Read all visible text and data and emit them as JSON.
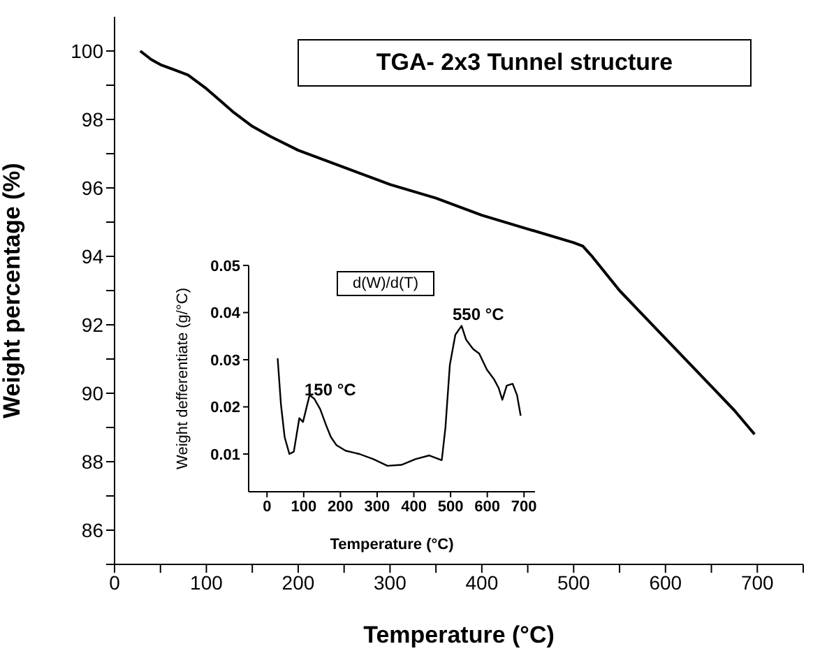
{
  "chart_data": [
    {
      "type": "line",
      "title": "TGA- 2x3 Tunnel structure",
      "xlabel": "Temperature (°C)",
      "ylabel": "Weight percentage (%)",
      "series": [
        {
          "color": "#000000",
          "x": [
            28,
            40,
            50,
            65,
            80,
            100,
            115,
            130,
            150,
            170,
            200,
            250,
            300,
            350,
            400,
            450,
            500,
            510,
            520,
            535,
            550,
            575,
            600,
            625,
            650,
            675,
            697
          ],
          "values": [
            100,
            99.75,
            99.6,
            99.45,
            99.3,
            98.9,
            98.55,
            98.2,
            97.8,
            97.5,
            97.1,
            96.6,
            96.1,
            95.7,
            95.2,
            94.8,
            94.4,
            94.3,
            94.0,
            93.5,
            93.0,
            92.3,
            91.6,
            90.9,
            90.2,
            89.5,
            88.8
          ]
        }
      ],
      "xlim": [
        0,
        750
      ],
      "ylim": [
        85,
        101
      ],
      "xticks": [
        0,
        {
          "value": 50,
          "label": null
        },
        100,
        {
          "value": 150,
          "label": null
        },
        200,
        {
          "value": 250,
          "label": null
        },
        300,
        {
          "value": 350,
          "label": null
        },
        400,
        {
          "value": 450,
          "label": null
        },
        500,
        {
          "value": 550,
          "label": null
        },
        600,
        {
          "value": 650,
          "label": null
        },
        700,
        {
          "value": 750,
          "label": null
        }
      ],
      "yticks": [
        {
          "value": 85,
          "label": null
        },
        86,
        {
          "value": 87,
          "label": null
        },
        88,
        {
          "value": 89,
          "label": null
        },
        90,
        {
          "value": 91,
          "label": null
        },
        92,
        {
          "value": 93,
          "label": null
        },
        94,
        {
          "value": 95,
          "label": null
        },
        96,
        {
          "value": 97,
          "label": null
        },
        98,
        {
          "value": 99,
          "label": null
        },
        100
      ]
    },
    {
      "type": "line",
      "title": "d(W)/d(T)",
      "xlabel": "Temperature (°C)",
      "ylabel": "Weight defferentiate (g/°C)",
      "series": [
        {
          "color": "#000000",
          "x": [
            29,
            38,
            48,
            61,
            73,
            88,
            98,
            116,
            129,
            145,
            161,
            174,
            189,
            214,
            252,
            290,
            328,
            366,
            404,
            442,
            476,
            486,
            498,
            513,
            530,
            542,
            561,
            578,
            599,
            618,
            631,
            641,
            653,
            669,
            681,
            691
          ],
          "values": [
            0.0303,
            0.0205,
            0.0136,
            0.01,
            0.0105,
            0.0176,
            0.0168,
            0.0225,
            0.0217,
            0.0195,
            0.0161,
            0.0136,
            0.0119,
            0.0107,
            0.01,
            0.0089,
            0.0075,
            0.0077,
            0.0089,
            0.0097,
            0.0087,
            0.0156,
            0.0289,
            0.0353,
            0.0372,
            0.0343,
            0.0323,
            0.0313,
            0.0279,
            0.0259,
            0.024,
            0.0215,
            0.0245,
            0.0249,
            0.0225,
            0.0181
          ]
        }
      ],
      "xlim": [
        -50,
        730
      ],
      "ylim": [
        0.002,
        0.05
      ],
      "xticks": [
        0,
        100,
        200,
        300,
        400,
        500,
        600,
        700
      ],
      "yticks": [
        0.01,
        0.02,
        0.03,
        0.04,
        0.05
      ],
      "annotations": [
        "150 °C",
        "550 °C"
      ]
    }
  ]
}
